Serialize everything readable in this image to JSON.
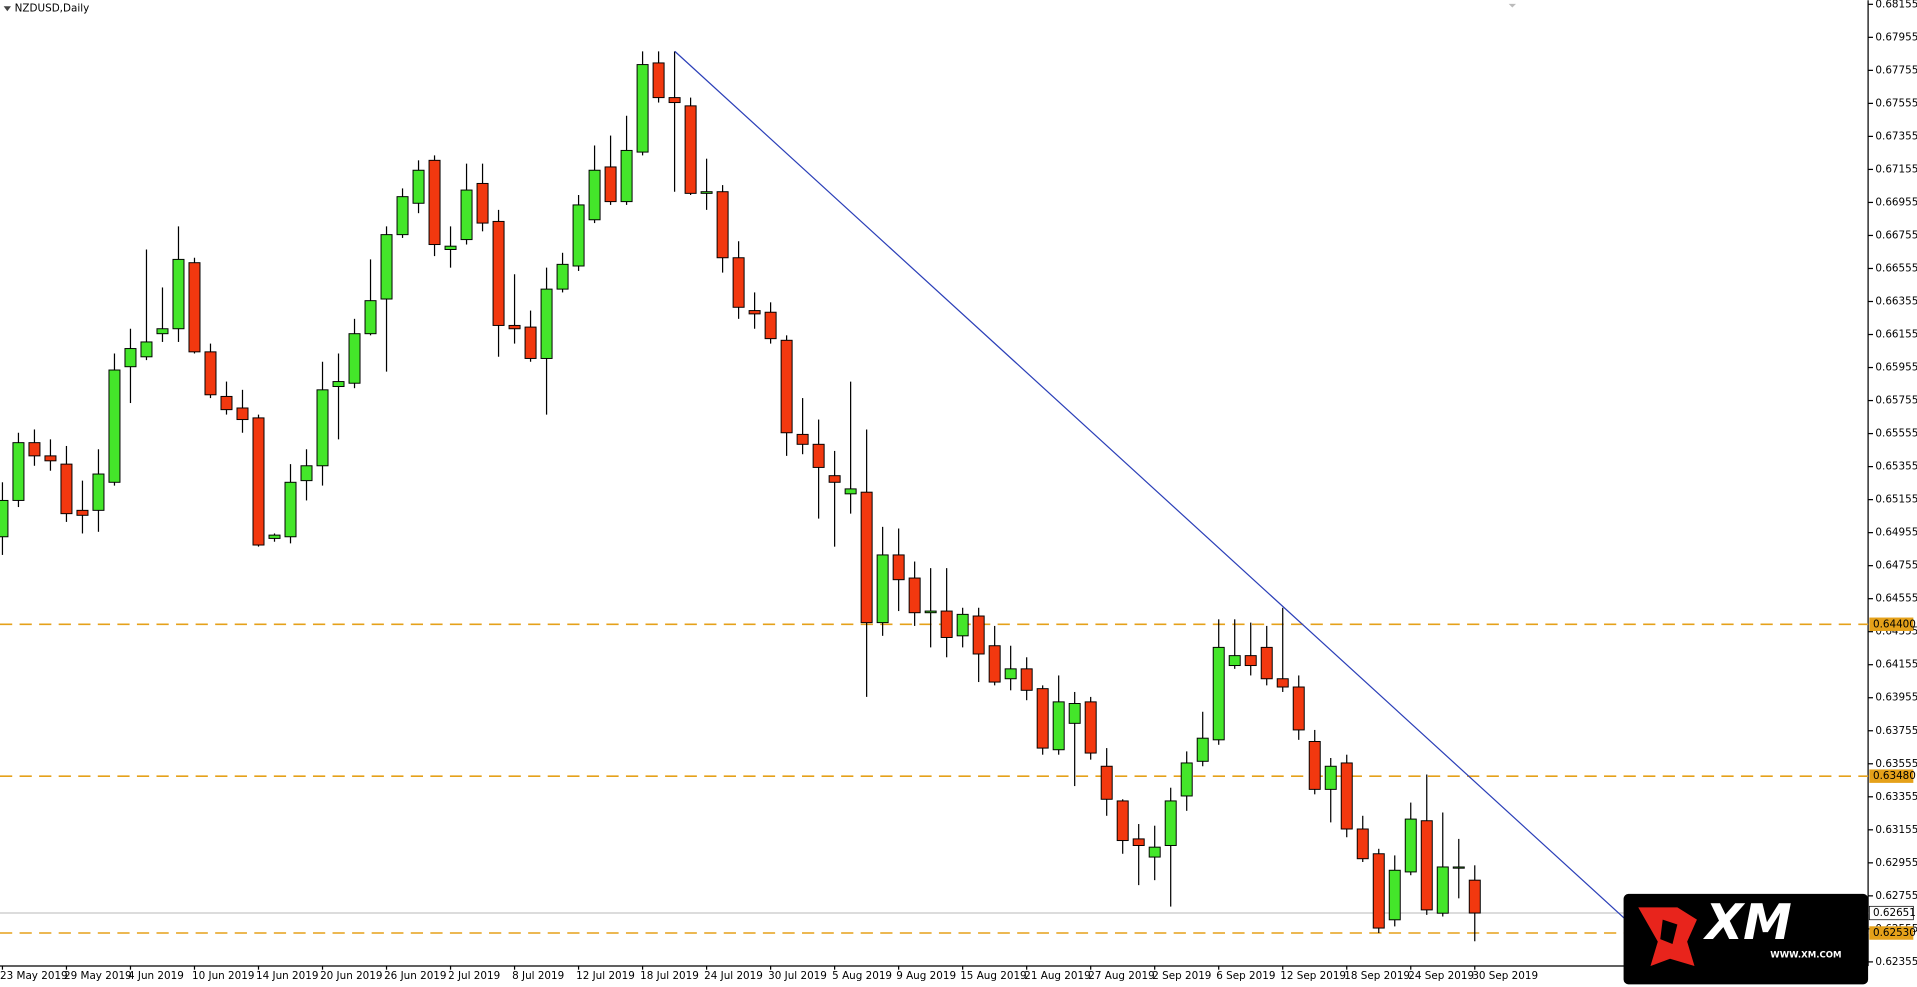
{
  "chart_data": {
    "type": "candlestick",
    "title": "NZDUSD,Daily",
    "categories": [
      "23 May 2019",
      null,
      null,
      null,
      "29 May 2019",
      null,
      null,
      null,
      "4 Jun 2019",
      null,
      null,
      null,
      "10 Jun 2019",
      null,
      null,
      null,
      "14 Jun 2019",
      null,
      null,
      null,
      "20 Jun 2019",
      null,
      null,
      null,
      "26 Jun 2019",
      null,
      null,
      null,
      "2 Jul 2019",
      null,
      null,
      null,
      "8 Jul 2019",
      null,
      null,
      null,
      "12 Jul 2019",
      null,
      null,
      null,
      "18 Jul 2019",
      null,
      null,
      null,
      "24 Jul 2019",
      null,
      null,
      null,
      "30 Jul 2019",
      null,
      null,
      null,
      "5 Aug 2019",
      null,
      null,
      null,
      "9 Aug 2019",
      null,
      null,
      null,
      "15 Aug 2019",
      null,
      null,
      null,
      "21 Aug 2019",
      null,
      null,
      null,
      "27 Aug 2019",
      null,
      null,
      null,
      "2 Sep 2019",
      null,
      null,
      null,
      "6 Sep 2019",
      null,
      null,
      null,
      "12 Sep 2019",
      null,
      null,
      null,
      "18 Sep 2019",
      null,
      null,
      null,
      "24 Sep 2019",
      null,
      null,
      null,
      "30 Sep 2019"
    ],
    "open": [
      0.6493,
      0.6515,
      0.655,
      0.6542,
      0.6537,
      0.6509,
      0.6509,
      0.6526,
      0.6596,
      0.6602,
      0.6616,
      0.6619,
      0.6659,
      0.6605,
      0.6578,
      0.6571,
      0.6565,
      0.6492,
      0.6493,
      0.6527,
      0.6536,
      0.6584,
      0.6586,
      0.6616,
      0.6637,
      0.6676,
      0.6695,
      0.6721,
      0.6667,
      0.6673,
      0.6707,
      0.6684,
      0.6621,
      0.662,
      0.6601,
      0.6643,
      0.6657,
      0.6685,
      0.6717,
      0.6696,
      0.6726,
      0.678,
      0.6759,
      0.6754,
      0.6701,
      0.6702,
      0.6662,
      0.663,
      0.6629,
      0.6612,
      0.6555,
      0.6549,
      0.653,
      0.6519,
      0.652,
      0.6441,
      0.6482,
      0.6468,
      0.6447,
      0.6448,
      0.6433,
      0.6445,
      0.6427,
      0.6407,
      0.6413,
      0.6401,
      0.6364,
      0.638,
      0.6393,
      0.6354,
      0.6333,
      0.631,
      0.6299,
      0.6306,
      0.6336,
      0.6357,
      0.637,
      0.6415,
      0.6421,
      0.6426,
      0.6407,
      0.6402,
      0.6369,
      0.634,
      0.6356,
      0.6316,
      0.6301,
      0.6261,
      0.629,
      0.6321,
      0.6265,
      0.6293,
      0.6285
    ],
    "high": [
      0.6526,
      0.6556,
      0.6558,
      0.6552,
      0.6548,
      0.6527,
      0.6546,
      0.6604,
      0.6619,
      0.6667,
      0.6644,
      0.6681,
      0.6662,
      0.661,
      0.6587,
      0.6582,
      0.6567,
      0.6495,
      0.6537,
      0.6546,
      0.6599,
      0.6604,
      0.6625,
      0.6661,
      0.6681,
      0.6704,
      0.6721,
      0.6724,
      0.6681,
      0.6719,
      0.6719,
      0.6691,
      0.6652,
      0.663,
      0.6656,
      0.6665,
      0.67,
      0.673,
      0.6736,
      0.6748,
      0.6787,
      0.6787,
      0.6787,
      0.6759,
      0.6722,
      0.6706,
      0.6672,
      0.6641,
      0.6635,
      0.6615,
      0.6577,
      0.6564,
      0.6545,
      0.6587,
      0.6558,
      0.6499,
      0.6498,
      0.6478,
      0.6474,
      0.6474,
      0.645,
      0.645,
      0.6439,
      0.6427,
      0.642,
      0.6403,
      0.6409,
      0.6399,
      0.6396,
      0.6365,
      0.6334,
      0.6319,
      0.6318,
      0.6341,
      0.6363,
      0.6387,
      0.6443,
      0.6443,
      0.6441,
      0.6439,
      0.645,
      0.6409,
      0.6376,
      0.6359,
      0.6361,
      0.6324,
      0.6304,
      0.63,
      0.6332,
      0.6349,
      0.6326,
      0.631,
      0.6294
    ],
    "low": [
      0.6482,
      0.6511,
      0.6536,
      0.6533,
      0.6502,
      0.6495,
      0.6496,
      0.6524,
      0.6574,
      0.66,
      0.6611,
      0.6611,
      0.6604,
      0.6577,
      0.6567,
      0.6556,
      0.6487,
      0.649,
      0.6489,
      0.6515,
      0.6524,
      0.6552,
      0.6583,
      0.6615,
      0.6593,
      0.6674,
      0.6689,
      0.6663,
      0.6656,
      0.667,
      0.6678,
      0.6602,
      0.661,
      0.6599,
      0.6567,
      0.6641,
      0.6654,
      0.6683,
      0.6694,
      0.6694,
      0.6724,
      0.6756,
      0.6702,
      0.67,
      0.6691,
      0.6653,
      0.6625,
      0.6619,
      0.661,
      0.6542,
      0.6543,
      0.6504,
      0.6487,
      0.6507,
      0.6396,
      0.6433,
      0.6448,
      0.6439,
      0.6426,
      0.642,
      0.6426,
      0.6405,
      0.6403,
      0.64,
      0.6394,
      0.6361,
      0.6361,
      0.6342,
      0.6358,
      0.6324,
      0.6301,
      0.6282,
      0.6285,
      0.6269,
      0.6327,
      0.6354,
      0.6367,
      0.6413,
      0.6409,
      0.6403,
      0.6399,
      0.637,
      0.6337,
      0.632,
      0.6311,
      0.6296,
      0.6253,
      0.6257,
      0.6288,
      0.6264,
      0.6263,
      0.6274,
      0.6248
    ],
    "close": [
      0.6515,
      0.655,
      0.6542,
      0.6539,
      0.6507,
      0.6506,
      0.6531,
      0.6594,
      0.6607,
      0.6611,
      0.6619,
      0.6661,
      0.6605,
      0.6579,
      0.657,
      0.6564,
      0.6488,
      0.6494,
      0.6526,
      0.6536,
      0.6582,
      0.6587,
      0.6616,
      0.6636,
      0.6676,
      0.6699,
      0.6715,
      0.667,
      0.6669,
      0.6703,
      0.6683,
      0.6621,
      0.6619,
      0.6601,
      0.6643,
      0.6658,
      0.6694,
      0.6715,
      0.6696,
      0.6727,
      0.6779,
      0.6759,
      0.6756,
      0.6701,
      0.6702,
      0.6662,
      0.6632,
      0.6628,
      0.6613,
      0.6556,
      0.6549,
      0.6535,
      0.6526,
      0.6522,
      0.6441,
      0.6482,
      0.6467,
      0.6447,
      0.6448,
      0.6432,
      0.6446,
      0.6422,
      0.6405,
      0.6413,
      0.64,
      0.6365,
      0.6393,
      0.6392,
      0.6362,
      0.6334,
      0.6309,
      0.6306,
      0.6305,
      0.6333,
      0.6356,
      0.6371,
      0.6426,
      0.6421,
      0.6415,
      0.6407,
      0.6402,
      0.6376,
      0.634,
      0.6354,
      0.6316,
      0.6298,
      0.6256,
      0.6291,
      0.6322,
      0.6267,
      0.6293,
      0.6293,
      0.62651
    ],
    "up_color": "#44e62a",
    "down_color": "#f2380f",
    "ylim": [
      0.6233,
      0.6818
    ],
    "yticks": [
      0.62355,
      0.62555,
      0.62755,
      0.62955,
      0.63155,
      0.63355,
      0.63555,
      0.63755,
      0.63955,
      0.64155,
      0.64355,
      0.64555,
      0.64755,
      0.64955,
      0.65155,
      0.65355,
      0.65555,
      0.65755,
      0.65955,
      0.66155,
      0.66355,
      0.66555,
      0.66755,
      0.66955,
      0.67155,
      0.67355,
      0.67555,
      0.67755,
      0.67955,
      0.68155
    ],
    "grid": false,
    "levels": [
      {
        "value": 0.644,
        "label": "0.64400"
      },
      {
        "value": 0.6348,
        "label": "0.63480"
      },
      {
        "value": 0.6253,
        "label": "0.62530"
      }
    ],
    "level_color": "#e5a11a",
    "current_price": {
      "value": 0.62651,
      "label": "0.62651"
    },
    "trendline": {
      "start": 0.6787,
      "end": 0.6261,
      "color": "#2b3fb8"
    },
    "logo": {
      "text": "XM",
      "url": "WWW.XM.COM"
    }
  }
}
